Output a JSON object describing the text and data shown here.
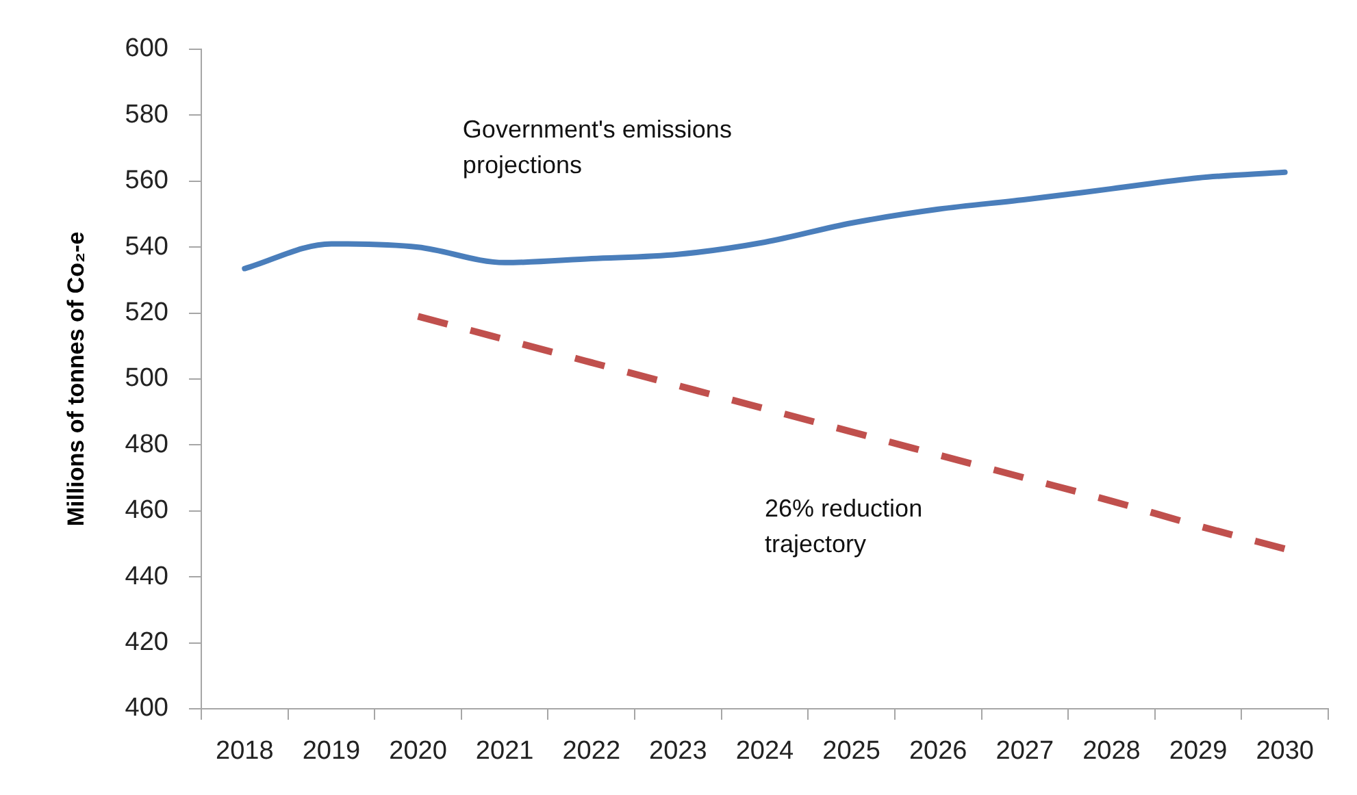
{
  "chart_data": {
    "type": "line",
    "ylabel": "Millions of tonnes of Co₂-e",
    "categories": [
      "2018",
      "2019",
      "2020",
      "2021",
      "2022",
      "2023",
      "2024",
      "2025",
      "2026",
      "2027",
      "2028",
      "2029",
      "2030"
    ],
    "series": [
      {
        "name": "Government's emissions projections",
        "color": "#4a7ebb",
        "line_style": "solid",
        "values": [
          533.5,
          541,
          540,
          535.3,
          536.5,
          537.8,
          541.5,
          547.3,
          551.5,
          554.4,
          557.7,
          561,
          562.7
        ]
      },
      {
        "name": "26% reduction trajectory",
        "color": "#c0504d",
        "line_style": "dashed",
        "values": [
          null,
          null,
          519,
          512,
          505,
          498,
          491,
          484,
          477,
          470,
          463,
          455.5,
          448.5
        ]
      }
    ],
    "ylim": [
      400,
      600
    ],
    "yticks": [
      400,
      420,
      440,
      460,
      480,
      500,
      520,
      540,
      560,
      580,
      600
    ],
    "marker": "none"
  }
}
